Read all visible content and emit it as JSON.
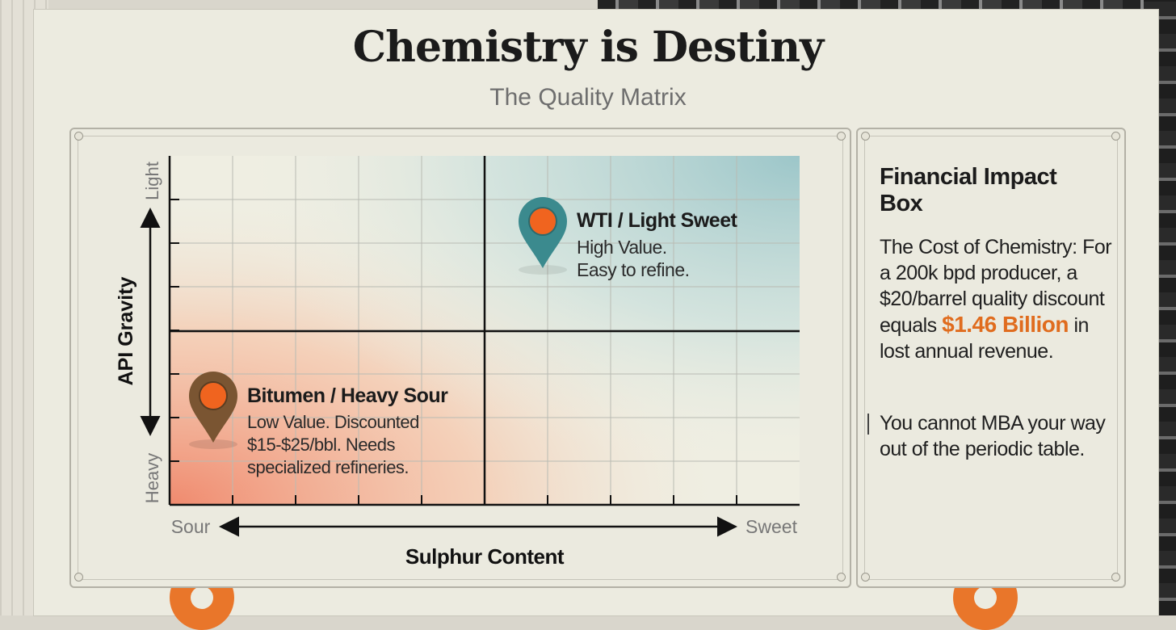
{
  "header": {
    "title": "Chemistry is Destiny",
    "subtitle": "The Quality Matrix"
  },
  "matrix": {
    "x_axis_title": "Sulphur Content",
    "x_axis_left": "Sour",
    "x_axis_right": "Sweet",
    "y_axis_title": "API Gravity",
    "y_axis_top": "Light",
    "y_axis_bottom": "Heavy",
    "colors": {
      "sour_heavy": "#f08a6e",
      "sweet_light": "#9cc6c9",
      "pin_teal": "#3b8a8e",
      "pin_brown": "#7a5532",
      "pin_dot": "#f0641f"
    },
    "markers": [
      {
        "name": "WTI / Light Sweet",
        "lines": [
          "High Value.",
          "Easy to refine."
        ],
        "pin_color": "teal"
      },
      {
        "name": "Bitumen / Heavy Sour",
        "lines": [
          "Low Value. Discounted",
          "$15-$25/bbl. Needs",
          "specialized refineries."
        ],
        "pin_color": "brown"
      }
    ]
  },
  "impact_box": {
    "title": "Financial Impact Box",
    "body_pre": "The Cost of Chemistry: For a 200k bpd producer, a $20/barrel quality discount equals",
    "highlight": "$1.46 Billion",
    "body_post": "in lost annual revenue.",
    "quote": "You cannot MBA your way out of the periodic table.",
    "highlight_color": "#e06c1e"
  }
}
